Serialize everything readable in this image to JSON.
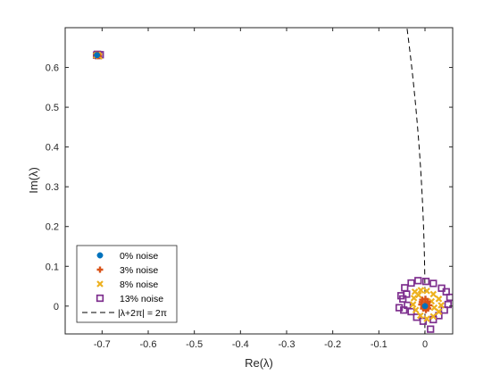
{
  "chart_data": {
    "type": "scatter",
    "xlabel": "Re(λ)",
    "ylabel": "Im(λ)",
    "xlim": [
      -0.78,
      0.06
    ],
    "ylim": [
      -0.07,
      0.7
    ],
    "xticks": [
      "-0.7",
      "-0.6",
      "-0.5",
      "-0.4",
      "-0.3",
      "-0.2",
      "-0.1",
      "0"
    ],
    "xtick_values": [
      -0.7,
      -0.6,
      -0.5,
      -0.4,
      -0.3,
      -0.2,
      -0.1,
      0
    ],
    "yticks": [
      "0",
      "0.1",
      "0.2",
      "0.3",
      "0.4",
      "0.5",
      "0.6"
    ],
    "ytick_values": [
      0,
      0.1,
      0.2,
      0.3,
      0.4,
      0.5,
      0.6
    ],
    "grid": false,
    "legend_position": "bottom-left",
    "series": [
      {
        "name": "0% noise",
        "marker": "filled-circle",
        "color": "#0072BD",
        "points": [
          [
            -0.711,
            0.631
          ],
          [
            0.0,
            0.0
          ]
        ]
      },
      {
        "name": "3% noise",
        "marker": "plus",
        "color": "#D95319",
        "points": [
          [
            -0.712,
            0.631
          ],
          [
            -0.708,
            0.629
          ],
          [
            -0.71,
            0.632
          ],
          [
            -0.006,
            0.016
          ],
          [
            0.001,
            0.018
          ],
          [
            0.006,
            0.011
          ],
          [
            0.009,
            0.002
          ],
          [
            0.007,
            -0.006
          ],
          [
            0.002,
            -0.01
          ],
          [
            -0.004,
            -0.006
          ],
          [
            -0.008,
            0.004
          ],
          [
            -0.007,
            0.01
          ],
          [
            0.004,
            0.006
          ]
        ]
      },
      {
        "name": "8% noise",
        "marker": "x",
        "color": "#EDB120",
        "points": [
          [
            -0.713,
            0.63
          ],
          [
            -0.709,
            0.632
          ],
          [
            -0.706,
            0.628
          ],
          [
            -0.022,
            0.036
          ],
          [
            -0.009,
            0.04
          ],
          [
            0.004,
            0.038
          ],
          [
            0.018,
            0.03
          ],
          [
            0.03,
            0.018
          ],
          [
            0.035,
            0.002
          ],
          [
            0.03,
            -0.014
          ],
          [
            0.018,
            -0.026
          ],
          [
            0.004,
            -0.032
          ],
          [
            -0.01,
            -0.024
          ],
          [
            -0.02,
            -0.01
          ],
          [
            -0.026,
            0.004
          ],
          [
            -0.024,
            0.02
          ],
          [
            0.014,
            0.012
          ],
          [
            0.02,
            -0.004
          ],
          [
            -0.014,
            0.028
          ]
        ]
      },
      {
        "name": "13% noise",
        "marker": "open-square",
        "color": "#7E2F8E",
        "points": [
          [
            -0.712,
            0.631
          ],
          [
            -0.71,
            0.633
          ],
          [
            -0.708,
            0.63
          ],
          [
            -0.704,
            0.632
          ],
          [
            -0.044,
            0.046
          ],
          [
            -0.03,
            0.058
          ],
          [
            -0.015,
            0.064
          ],
          [
            0.002,
            0.062
          ],
          [
            0.018,
            0.057
          ],
          [
            0.036,
            0.045
          ],
          [
            0.046,
            0.036
          ],
          [
            0.054,
            0.022
          ],
          [
            0.05,
            0.004
          ],
          [
            0.042,
            -0.01
          ],
          [
            0.03,
            -0.024
          ],
          [
            0.018,
            -0.034
          ],
          [
            0.012,
            -0.058
          ],
          [
            -0.004,
            -0.038
          ],
          [
            -0.018,
            -0.028
          ],
          [
            -0.03,
            -0.014
          ],
          [
            -0.038,
            0.002
          ],
          [
            -0.048,
            0.018
          ],
          [
            -0.052,
            0.026
          ],
          [
            -0.04,
            0.03
          ],
          [
            -0.056,
            -0.004
          ],
          [
            -0.046,
            -0.01
          ]
        ]
      }
    ],
    "reference_curve": {
      "name": "|λ+2π| = 2π",
      "style": "dashed",
      "color": "#000000"
    },
    "legend": {
      "entries": [
        "0% noise",
        "3% noise",
        "8% noise",
        "13% noise",
        "|λ+2π| = 2π"
      ]
    }
  }
}
